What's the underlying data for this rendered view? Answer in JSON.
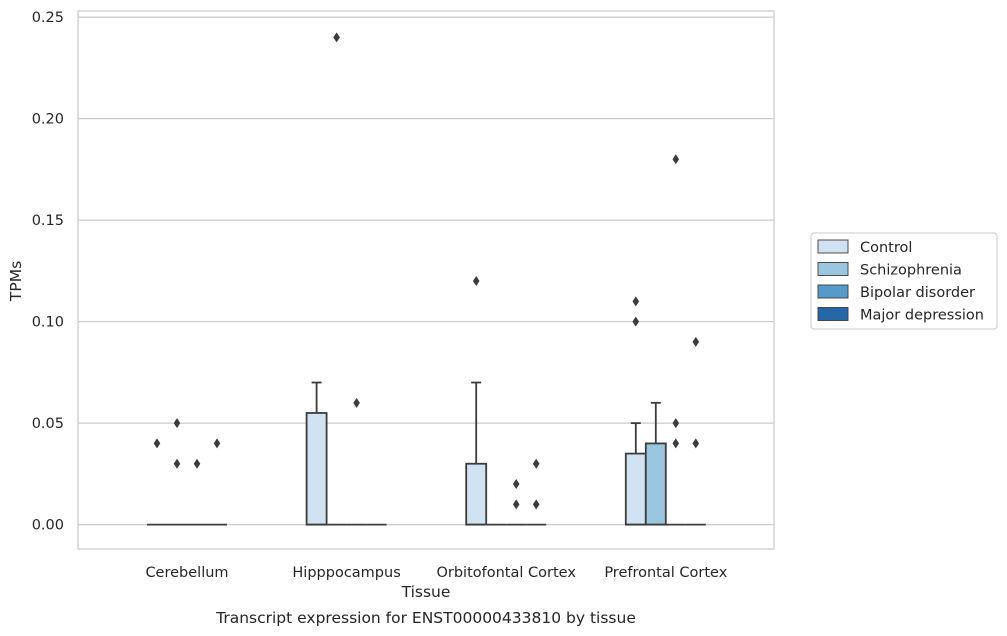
{
  "chart_data": {
    "type": "box",
    "title": "Transcript expression for ENST00000433810 by tissue",
    "xlabel": "Tissue",
    "ylabel": "TPMs",
    "ylim": [
      -0.012,
      0.253
    ],
    "yticks": [
      "0.00",
      "0.05",
      "0.10",
      "0.15",
      "0.20",
      "0.25"
    ],
    "ytick_values": [
      0,
      0.05,
      0.1,
      0.15,
      0.2,
      0.25
    ],
    "grid": true,
    "legend_position": "right",
    "categories": [
      "Cerebellum",
      "Hipppocampus",
      "Orbitofontal Cortex",
      "Prefrontal Cortex"
    ],
    "series": [
      {
        "name": "Control",
        "color": "#d1e2f2"
      },
      {
        "name": "Schizophrenia",
        "color": "#9bc6df"
      },
      {
        "name": "Bipolar disorder",
        "color": "#559ac9"
      },
      {
        "name": "Major depression",
        "color": "#2567a7"
      }
    ],
    "boxes": [
      {
        "category": 0,
        "series": 0,
        "q1": 0,
        "median": 0,
        "q3": 0,
        "whisker_low": 0,
        "whisker_high": 0,
        "outliers": [
          0.04
        ]
      },
      {
        "category": 0,
        "series": 1,
        "q1": 0,
        "median": 0,
        "q3": 0,
        "whisker_low": 0,
        "whisker_high": 0,
        "outliers": [
          0.03,
          0.05
        ]
      },
      {
        "category": 0,
        "series": 2,
        "q1": 0,
        "median": 0,
        "q3": 0,
        "whisker_low": 0,
        "whisker_high": 0,
        "outliers": [
          0.03
        ]
      },
      {
        "category": 0,
        "series": 3,
        "q1": 0,
        "median": 0,
        "q3": 0,
        "whisker_low": 0,
        "whisker_high": 0,
        "outliers": [
          0.04
        ]
      },
      {
        "category": 1,
        "series": 0,
        "q1": 0,
        "median": 0,
        "q3": 0.055,
        "whisker_low": 0,
        "whisker_high": 0.07,
        "outliers": []
      },
      {
        "category": 1,
        "series": 1,
        "q1": 0,
        "median": 0,
        "q3": 0,
        "whisker_low": 0,
        "whisker_high": 0,
        "outliers": [
          0.24
        ]
      },
      {
        "category": 1,
        "series": 2,
        "q1": 0,
        "median": 0,
        "q3": 0,
        "whisker_low": 0,
        "whisker_high": 0,
        "outliers": [
          0.06
        ]
      },
      {
        "category": 1,
        "series": 3,
        "q1": 0,
        "median": 0,
        "q3": 0,
        "whisker_low": 0,
        "whisker_high": 0,
        "outliers": []
      },
      {
        "category": 2,
        "series": 0,
        "q1": 0,
        "median": 0,
        "q3": 0.03,
        "whisker_low": 0,
        "whisker_high": 0.07,
        "outliers": [
          0.12
        ]
      },
      {
        "category": 2,
        "series": 1,
        "q1": 0,
        "median": 0,
        "q3": 0,
        "whisker_low": 0,
        "whisker_high": 0,
        "outliers": []
      },
      {
        "category": 2,
        "series": 2,
        "q1": 0,
        "median": 0,
        "q3": 0,
        "whisker_low": 0,
        "whisker_high": 0,
        "outliers": [
          0.01,
          0.02
        ]
      },
      {
        "category": 2,
        "series": 3,
        "q1": 0,
        "median": 0,
        "q3": 0,
        "whisker_low": 0,
        "whisker_high": 0,
        "outliers": [
          0.01,
          0.03
        ]
      },
      {
        "category": 3,
        "series": 0,
        "q1": 0,
        "median": 0,
        "q3": 0.035,
        "whisker_low": 0,
        "whisker_high": 0.05,
        "outliers": [
          0.1,
          0.11
        ]
      },
      {
        "category": 3,
        "series": 1,
        "q1": 0,
        "median": 0,
        "q3": 0.04,
        "whisker_low": 0,
        "whisker_high": 0.06,
        "outliers": []
      },
      {
        "category": 3,
        "series": 2,
        "q1": 0,
        "median": 0,
        "q3": 0,
        "whisker_low": 0,
        "whisker_high": 0,
        "outliers": [
          0.04,
          0.05,
          0.18
        ]
      },
      {
        "category": 3,
        "series": 3,
        "q1": 0,
        "median": 0,
        "q3": 0,
        "whisker_low": 0,
        "whisker_high": 0,
        "outliers": [
          0.04,
          0.09
        ]
      }
    ]
  }
}
